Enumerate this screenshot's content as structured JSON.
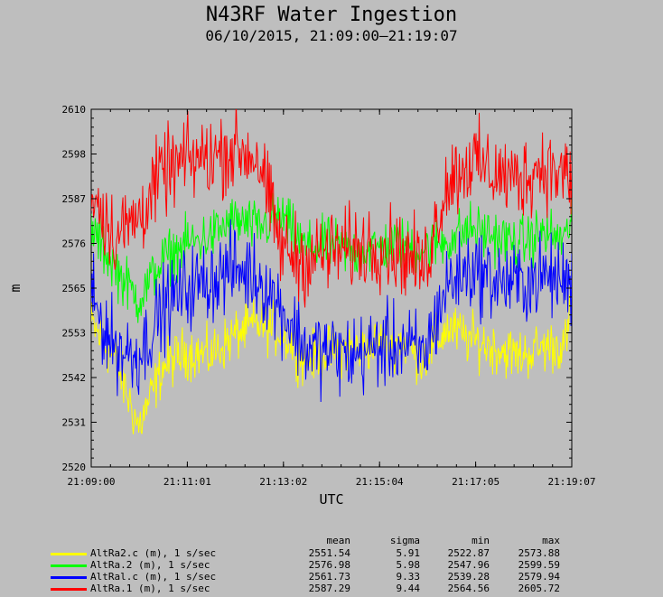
{
  "title": "N43RF Water Ingestion",
  "subtitle": "06/10/2015, 21:09:00–21:19:07",
  "chart_data": {
    "type": "line",
    "xlabel": "UTC",
    "ylabel": "m",
    "x_ticks": [
      "21:09:00",
      "21:11:01",
      "21:13:02",
      "21:15:04",
      "21:17:05",
      "21:19:07"
    ],
    "y_ticks": [
      "2520",
      "2531",
      "2542",
      "2553",
      "2565",
      "2576",
      "2587",
      "2598",
      "2610"
    ],
    "ylim": [
      2520,
      2610
    ],
    "x_range_seconds": [
      0,
      607
    ],
    "grid": false,
    "legend_position": "bottom-left",
    "stats_headers": [
      "mean",
      "sigma",
      "min",
      "max"
    ],
    "series": [
      {
        "name": "AltRa2.c (m), 1 s/sec",
        "color": "#ffff00",
        "stats": [
          "2551.54",
          "5.91",
          "2522.87",
          "2573.88"
        ],
        "x": [
          0,
          30,
          60,
          90,
          120,
          150,
          180,
          210,
          240,
          270,
          300,
          330,
          360,
          390,
          420,
          450,
          480,
          510,
          540,
          570,
          600,
          607
        ],
        "y": [
          2556,
          2547,
          2530,
          2545,
          2549,
          2548,
          2553,
          2556,
          2554,
          2547,
          2549,
          2550,
          2551,
          2552,
          2547,
          2555,
          2552,
          2550,
          2548,
          2550,
          2551,
          2562
        ]
      },
      {
        "name": "AltRa.2 (m), 1 s/sec",
        "color": "#00ff00",
        "stats": [
          "2576.98",
          "5.98",
          "2547.96",
          "2599.59"
        ],
        "x": [
          0,
          30,
          60,
          90,
          120,
          150,
          180,
          210,
          240,
          270,
          300,
          330,
          360,
          390,
          420,
          450,
          480,
          510,
          540,
          570,
          600,
          607
        ],
        "y": [
          2580,
          2570,
          2562,
          2572,
          2576,
          2578,
          2582,
          2580,
          2583,
          2575,
          2576,
          2574,
          2575,
          2576,
          2575,
          2577,
          2580,
          2578,
          2576,
          2579,
          2577,
          2585
        ]
      },
      {
        "name": "AltRal.c (m), 1 s/sec",
        "color": "#0000ff",
        "stats": [
          "2561.73",
          "9.33",
          "2539.28",
          "2579.94"
        ],
        "x": [
          0,
          30,
          60,
          90,
          120,
          150,
          180,
          210,
          240,
          270,
          300,
          330,
          360,
          390,
          420,
          450,
          480,
          510,
          540,
          570,
          600,
          607
        ],
        "y": [
          2562,
          2550,
          2548,
          2560,
          2565,
          2567,
          2570,
          2568,
          2560,
          2550,
          2549,
          2548,
          2550,
          2551,
          2548,
          2566,
          2570,
          2567,
          2566,
          2568,
          2567,
          2566
        ]
      },
      {
        "name": "AltRa.1 (m), 1 s/sec",
        "color": "#ff0000",
        "stats": [
          "2587.29",
          "9.44",
          "2564.56",
          "2605.72"
        ],
        "x": [
          0,
          30,
          60,
          90,
          120,
          150,
          180,
          210,
          240,
          270,
          300,
          330,
          360,
          390,
          420,
          450,
          480,
          510,
          540,
          570,
          600,
          607
        ],
        "y": [
          2590,
          2578,
          2583,
          2594,
          2597,
          2598,
          2600,
          2598,
          2575,
          2572,
          2574,
          2575,
          2576,
          2574,
          2570,
          2592,
          2597,
          2594,
          2592,
          2596,
          2593,
          2592
        ]
      }
    ]
  }
}
